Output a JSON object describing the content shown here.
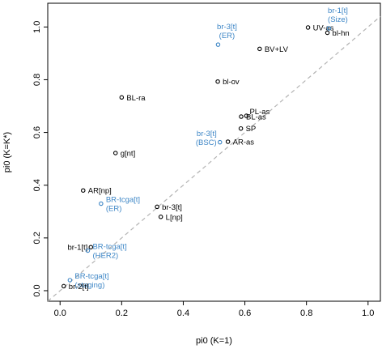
{
  "chart_data": {
    "type": "scatter",
    "xlabel": "pi0 (K=1)",
    "ylabel": "pi0 (K=K*)",
    "xlim": [
      -0.04,
      1.04
    ],
    "ylim": [
      -0.04,
      1.09
    ],
    "x_ticks": [
      "0.0",
      "0.2",
      "0.4",
      "0.6",
      "0.8",
      "1.0"
    ],
    "y_ticks": [
      "0.0",
      "0.2",
      "0.4",
      "0.6",
      "0.8",
      "1.0"
    ],
    "reference_line": {
      "style": "dashed",
      "slope": 1,
      "intercept": 0,
      "color": "#b3b3b3"
    },
    "colors": {
      "black": "#000000",
      "blue": "#3d86c6"
    },
    "points": [
      {
        "label": "UV-as",
        "x": 0.805,
        "y": 0.998,
        "color": "black",
        "anchor": "right"
      },
      {
        "label": "bl-hn",
        "x": 0.868,
        "y": 0.978,
        "color": "black",
        "anchor": "right"
      },
      {
        "label": "br-1[t]\n(Size)",
        "x": 0.873,
        "y": 0.995,
        "color": "blue",
        "anchor": "above"
      },
      {
        "label": "br-3[t]\n(ER)",
        "x": 0.513,
        "y": 0.933,
        "color": "blue",
        "anchor": "above"
      },
      {
        "label": "BV+LV",
        "x": 0.648,
        "y": 0.917,
        "color": "black",
        "anchor": "right"
      },
      {
        "label": "bl-ov",
        "x": 0.512,
        "y": 0.793,
        "color": "black",
        "anchor": "right"
      },
      {
        "label": "BL-ra",
        "x": 0.2,
        "y": 0.733,
        "color": "black",
        "anchor": "right"
      },
      {
        "label": "PL-as",
        "x": 0.605,
        "y": 0.663,
        "color": "black",
        "anchor": "right-up"
      },
      {
        "label": "BL-as",
        "x": 0.588,
        "y": 0.66,
        "color": "black",
        "anchor": "right"
      },
      {
        "label": "SP",
        "x": 0.587,
        "y": 0.615,
        "color": "black",
        "anchor": "right"
      },
      {
        "label": "br-3[t]\n(BSC)",
        "x": 0.519,
        "y": 0.563,
        "color": "blue",
        "anchor": "left"
      },
      {
        "label": "AR-as",
        "x": 0.545,
        "y": 0.565,
        "color": "black",
        "anchor": "right"
      },
      {
        "label": "g[nt]",
        "x": 0.18,
        "y": 0.522,
        "color": "black",
        "anchor": "right"
      },
      {
        "label": "AR[np]",
        "x": 0.075,
        "y": 0.38,
        "color": "black",
        "anchor": "right"
      },
      {
        "label": "BR-tcga[t]\n(ER)",
        "x": 0.133,
        "y": 0.33,
        "color": "blue",
        "anchor": "right"
      },
      {
        "label": "br-3[t]",
        "x": 0.315,
        "y": 0.318,
        "color": "black",
        "anchor": "right"
      },
      {
        "label": "L[np]",
        "x": 0.327,
        "y": 0.28,
        "color": "black",
        "anchor": "right"
      },
      {
        "label": "br-1[t]",
        "x": 0.1,
        "y": 0.165,
        "color": "black",
        "anchor": "left"
      },
      {
        "label": "BR-tcga[t]\n(HER2)",
        "x": 0.09,
        "y": 0.152,
        "color": "blue",
        "anchor": "right"
      },
      {
        "label": "BR-tcga[t]\n(staging)",
        "x": 0.032,
        "y": 0.04,
        "color": "blue",
        "anchor": "right"
      },
      {
        "label": "br-2[t]",
        "x": 0.012,
        "y": 0.017,
        "color": "black",
        "anchor": "right"
      }
    ]
  }
}
